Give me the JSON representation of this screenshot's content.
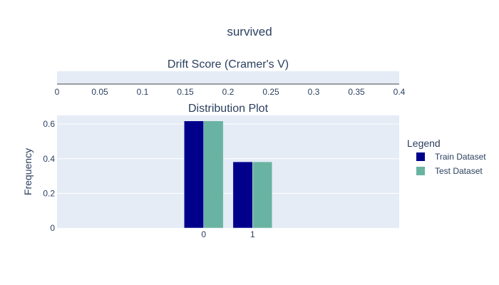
{
  "title": "survived",
  "drift": {
    "subtitle": "Drift Score (Cramer's V)",
    "xlim": [
      0,
      0.4
    ],
    "ticks": [
      "0",
      "0.05",
      "0.1",
      "0.15",
      "0.2",
      "0.25",
      "0.3",
      "0.35",
      "0.4"
    ],
    "tick_values": [
      0,
      0.05,
      0.1,
      0.15,
      0.2,
      0.25,
      0.3,
      0.35,
      0.4
    ]
  },
  "chart_data": {
    "type": "bar",
    "title": "Distribution Plot",
    "xlabel": "",
    "ylabel": "Frequency",
    "categories": [
      "0",
      "1"
    ],
    "ylim": [
      0,
      0.65
    ],
    "yticks": [
      "0",
      "0.2",
      "0.4",
      "0.6"
    ],
    "ytick_values": [
      0,
      0.2,
      0.4,
      0.6
    ],
    "series": [
      {
        "name": "Train Dataset",
        "color": "#00008b",
        "values": [
          0.618,
          0.382
        ]
      },
      {
        "name": "Test Dataset",
        "color": "#69b3a2",
        "values": [
          0.618,
          0.382
        ]
      }
    ],
    "legend": {
      "title": "Legend",
      "position": "right"
    },
    "grid": true
  },
  "colors": {
    "plot_bg": "#e5ecf6",
    "text": "#2a3f5f",
    "grid": "#ffffff"
  }
}
